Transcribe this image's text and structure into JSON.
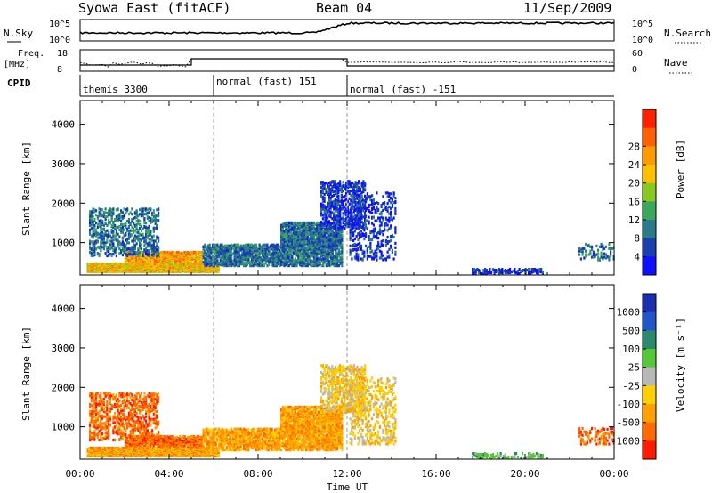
{
  "header": {
    "station": "Syowa East (fitACF)",
    "beam": "Beam 04",
    "date": "11/Sep/2009"
  },
  "noise_panel": {
    "left_label": "N.Sky",
    "right_label": "N.Search",
    "left_ticks": [
      "10^5",
      "10^0"
    ],
    "right_ticks": [
      "10^5",
      "10^0"
    ]
  },
  "freq_panel": {
    "left_label_1": "Freq.",
    "left_label_2": "[MHz]",
    "right_label": "Nave",
    "left_ticks": [
      "18",
      "8"
    ],
    "right_ticks": [
      "60",
      "0"
    ]
  },
  "cpid_panel": {
    "label": "CPID",
    "segments": [
      {
        "name": "themis 3300",
        "start_h": 0,
        "end_h": 6
      },
      {
        "name": "normal (fast) 151",
        "start_h": 6,
        "end_h": 12
      },
      {
        "name": "normal (fast) -151",
        "start_h": 12,
        "end_h": 24
      }
    ]
  },
  "power_panel": {
    "ylabel": "Slant Range [km]",
    "colorbar_label": "Power [dB]",
    "yticks": [
      "1000",
      "2000",
      "3000",
      "4000"
    ],
    "colorbar_ticks": [
      "4",
      "8",
      "12",
      "16",
      "20",
      "24",
      "28"
    ],
    "colors": [
      "#1010ff",
      "#1a3fb0",
      "#2a7a8a",
      "#3aa85a",
      "#88c820",
      "#ffc000",
      "#ff9a00",
      "#ff6000",
      "#ff2000"
    ]
  },
  "velocity_panel": {
    "ylabel": "Slant Range [km]",
    "colorbar_label": "Velocity [m s⁻¹]",
    "yticks": [
      "1000",
      "2000",
      "3000",
      "4000"
    ],
    "colorbar_ticks": [
      "1000",
      "500",
      "100",
      "25",
      "-25",
      "-100",
      "-500",
      "-1000"
    ],
    "colors": [
      "#1a2fb0",
      "#2255cc",
      "#2a8a6a",
      "#55c83a",
      "#b8b8b8",
      "#ffd000",
      "#ffa000",
      "#ff6a00",
      "#ff1a00"
    ]
  },
  "x_axis": {
    "label": "Time UT",
    "ticks": [
      "00:00",
      "04:00",
      "08:00",
      "12:00",
      "16:00",
      "20:00",
      "00:00"
    ]
  },
  "chart_data": {
    "type": "heatmap",
    "xlabel": "Time UT",
    "ylabel": "Slant Range [km]",
    "xlim_hours": [
      0,
      24
    ],
    "ylim_km": [
      180,
      4600
    ],
    "cpid_changes_hours": [
      6,
      12
    ],
    "scatter_regions": [
      {
        "t0": 0.3,
        "t1": 6.2,
        "r0": 300,
        "r1": 500,
        "density": 0.95,
        "power_mean": 20,
        "vel_mean": -100
      },
      {
        "t0": 2.0,
        "t1": 5.5,
        "r0": 550,
        "r1": 800,
        "density": 0.7,
        "power_mean": 22,
        "vel_mean": -500
      },
      {
        "t0": 0.4,
        "t1": 3.5,
        "r0": 700,
        "r1": 1900,
        "density": 0.28,
        "power_mean": 8,
        "vel_mean": -500
      },
      {
        "t0": 5.5,
        "t1": 11.8,
        "r0": 450,
        "r1": 1000,
        "density": 0.55,
        "power_mean": 8,
        "vel_mean": -100
      },
      {
        "t0": 9.0,
        "t1": 11.8,
        "r0": 900,
        "r1": 1550,
        "density": 0.6,
        "power_mean": 8,
        "vel_mean": -100
      },
      {
        "t0": 10.8,
        "t1": 12.8,
        "r0": 1400,
        "r1": 2600,
        "density": 0.35,
        "power_mean": 4,
        "vel_mean": -25
      },
      {
        "t0": 12.1,
        "t1": 14.2,
        "r0": 600,
        "r1": 2300,
        "density": 0.18,
        "power_mean": 4,
        "vel_mean": -25
      },
      {
        "t0": 17.6,
        "t1": 20.8,
        "r0": 250,
        "r1": 380,
        "density": 0.35,
        "power_mean": 4,
        "vel_mean": 100
      },
      {
        "t0": 22.4,
        "t1": 24.0,
        "r0": 600,
        "r1": 1000,
        "density": 0.2,
        "power_mean": 8,
        "vel_mean": -500
      }
    ]
  }
}
